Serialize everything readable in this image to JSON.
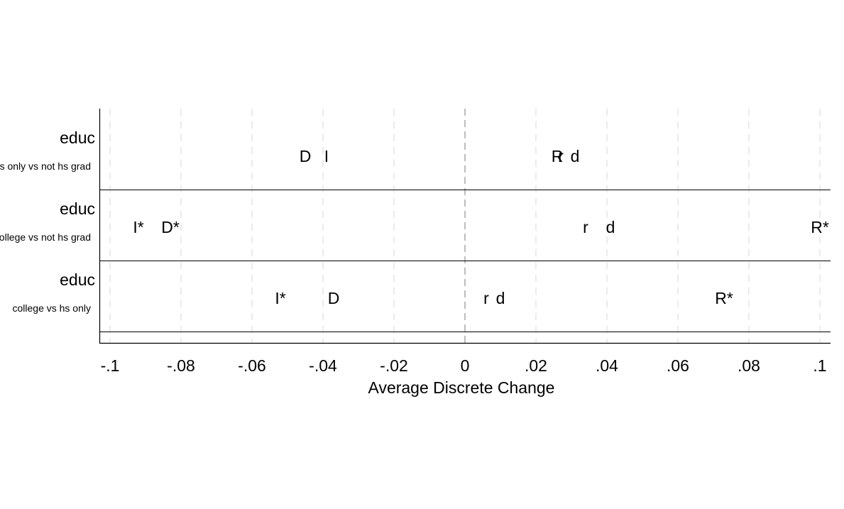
{
  "chart_data": {
    "type": "scatter",
    "xlabel": "Average Discrete Change",
    "xlim": [
      -0.1,
      0.1
    ],
    "x_ticks": [
      {
        "value": -0.1,
        "label": "-.1"
      },
      {
        "value": -0.08,
        "label": "-.08"
      },
      {
        "value": -0.06,
        "label": "-.06"
      },
      {
        "value": -0.04,
        "label": "-.04"
      },
      {
        "value": -0.02,
        "label": "-.02"
      },
      {
        "value": 0,
        "label": "0"
      },
      {
        "value": 0.02,
        "label": ".02"
      },
      {
        "value": 0.04,
        "label": ".04"
      },
      {
        "value": 0.06,
        "label": ".06"
      },
      {
        "value": 0.08,
        "label": ".08"
      },
      {
        "value": 0.1,
        "label": ".1"
      }
    ],
    "grid": true,
    "reference_line": 0,
    "rows": [
      {
        "variable": "educ",
        "contrast": "hs only vs not hs grad",
        "points": [
          {
            "label": "D",
            "x": -0.045
          },
          {
            "label": "I",
            "x": -0.039
          },
          {
            "label": "R",
            "x": 0.026
          },
          {
            "label": "r",
            "x": 0.027
          },
          {
            "label": "d",
            "x": 0.031
          }
        ]
      },
      {
        "variable": "educ",
        "contrast": "college vs not hs grad",
        "points": [
          {
            "label": "I*",
            "x": -0.092
          },
          {
            "label": "D*",
            "x": -0.083
          },
          {
            "label": "r",
            "x": 0.034
          },
          {
            "label": "d",
            "x": 0.041
          },
          {
            "label": "R*",
            "x": 0.1
          }
        ]
      },
      {
        "variable": "educ",
        "contrast": "college vs hs only",
        "points": [
          {
            "label": "I*",
            "x": -0.052
          },
          {
            "label": "D",
            "x": -0.037
          },
          {
            "label": "r",
            "x": 0.006
          },
          {
            "label": "d",
            "x": 0.01
          },
          {
            "label": "R*",
            "x": 0.073
          }
        ]
      }
    ]
  }
}
